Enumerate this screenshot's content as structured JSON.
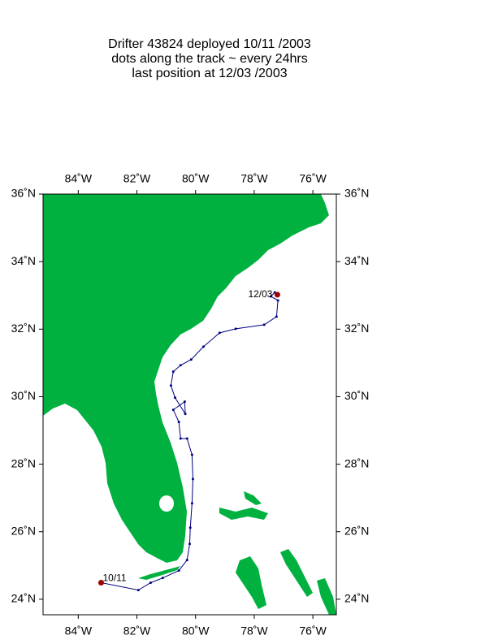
{
  "chart_data": {
    "type": "line",
    "title_lines": [
      "Drifter 43824  deployed  10/11 /2003",
      "dots along the track ~ every 24hrs",
      "last position at 12/03 /2003"
    ],
    "xlim": [
      -85.2,
      -75.2
    ],
    "ylim": [
      23.54,
      36
    ],
    "xticks": [
      {
        "value": -84,
        "label": "84˚W"
      },
      {
        "value": -82,
        "label": "82˚W"
      },
      {
        "value": -80,
        "label": "80˚W"
      },
      {
        "value": -78,
        "label": "78˚W"
      },
      {
        "value": -76,
        "label": "76˚W"
      }
    ],
    "yticks": [
      {
        "value": 24,
        "label": "24˚N"
      },
      {
        "value": 26,
        "label": "26˚N"
      },
      {
        "value": 28,
        "label": "28˚N"
      },
      {
        "value": 30,
        "label": "30˚N"
      },
      {
        "value": 32,
        "label": "32˚N"
      },
      {
        "value": 34,
        "label": "34˚N"
      },
      {
        "value": 36,
        "label": "36˚N"
      }
    ],
    "x": [
      -83.22,
      -81.95,
      -81.53,
      -81.12,
      -80.57,
      -80.29,
      -80.2,
      -80.18,
      -80.12,
      -80.09,
      -80.12,
      -80.29,
      -80.51,
      -80.57,
      -80.76,
      -80.37,
      -80.35,
      -80.7,
      -80.84,
      -80.76,
      -80.51,
      -80.15,
      -79.73,
      -79.18,
      -78.63,
      -77.66,
      -77.24,
      -77.19,
      -77.43,
      -77.3,
      -77.21
    ],
    "values": [
      24.49,
      24.27,
      24.49,
      24.63,
      24.85,
      25.16,
      25.64,
      26.12,
      26.84,
      27.56,
      28.28,
      28.76,
      28.76,
      29.25,
      29.61,
      29.85,
      29.49,
      29.97,
      30.33,
      30.74,
      30.93,
      31.1,
      31.48,
      31.89,
      32.01,
      32.13,
      32.37,
      32.85,
      32.97,
      33.09,
      33.02
    ],
    "color": "#000080",
    "endpoint_color": "#a00000",
    "start_label": "10/11",
    "end_label": "12/03"
  }
}
